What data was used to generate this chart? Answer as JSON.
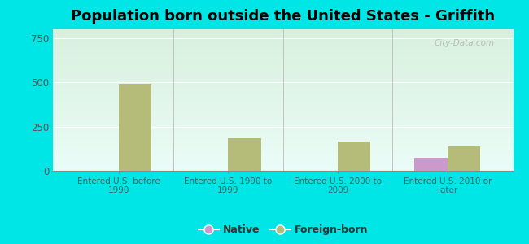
{
  "title": "Population born outside the United States - Griffith",
  "categories": [
    "Entered U.S. before\n1990",
    "Entered U.S. 1990 to\n1999",
    "Entered U.S. 2000 to\n2009",
    "Entered U.S. 2010 or\nlater"
  ],
  "native_values": [
    0,
    0,
    0,
    75
  ],
  "foreign_values": [
    490,
    185,
    165,
    140
  ],
  "native_color": "#cc99cc",
  "foreign_color": "#b5bc7a",
  "background_color": "#00e5e5",
  "ylim": [
    0,
    800
  ],
  "yticks": [
    0,
    250,
    500,
    750
  ],
  "title_fontsize": 13,
  "watermark": "City-Data.com"
}
